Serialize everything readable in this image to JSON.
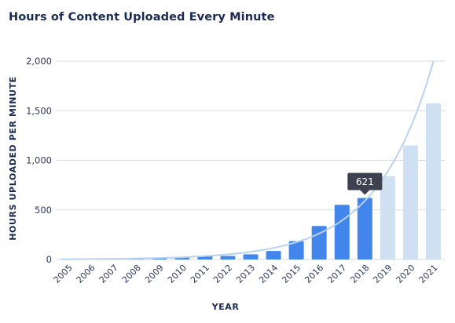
{
  "chart_data": {
    "type": "bar",
    "title": "Hours of Content Uploaded Every Minute",
    "xlabel": "YEAR",
    "ylabel": "HOURS UPLOADED PER MINUTE",
    "ylim": [
      0,
      2000
    ],
    "yticks": [
      0,
      500,
      1000,
      1500,
      2000
    ],
    "ytick_labels": [
      "0",
      "500",
      "1,000",
      "1,500",
      "2,000"
    ],
    "grid": true,
    "categories": [
      "2005",
      "2006",
      "2007",
      "2008",
      "2009",
      "2010",
      "2011",
      "2012",
      "2013",
      "2014",
      "2015",
      "2016",
      "2017",
      "2018",
      "2019",
      "2020",
      "2021"
    ],
    "series": [
      {
        "values": [
          0,
          0,
          6,
          13,
          20,
          24,
          35,
          36,
          52,
          86,
          186,
          338,
          551,
          621,
          840,
          1150,
          1575
        ],
        "colors": {
          "actual": "#4285eb",
          "projected": "#cfe0f2"
        },
        "projected_from_index": 14
      },
      {
        "type": "line",
        "style": "curve",
        "color": "#b8d2f0",
        "x": [
          "2005",
          "2021"
        ],
        "trend": "exponential",
        "y_start": 3,
        "y_end": 2000
      }
    ],
    "annotations": [
      {
        "category": "2018",
        "text": "621",
        "style": "tooltip",
        "background": "#3d4150"
      }
    ]
  }
}
